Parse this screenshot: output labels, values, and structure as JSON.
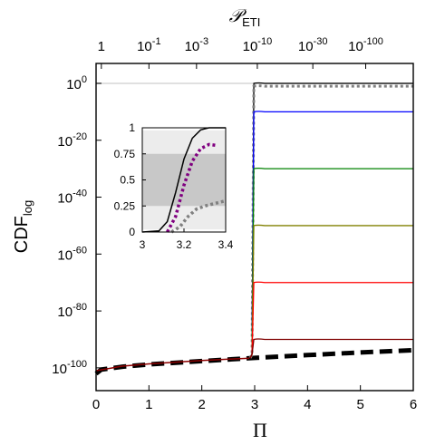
{
  "chart_data": {
    "type": "line",
    "xlabel": "Π",
    "ylabel": "CDF",
    "ylabel_sub": "log",
    "top_xlabel": "𝒫",
    "top_xlabel_sub": "ETI",
    "xlim": [
      0,
      6
    ],
    "ylim_exp": [
      -108,
      7
    ],
    "y_scale": "log",
    "x_ticks": [
      {
        "value": 0,
        "label": "0"
      },
      {
        "value": 1,
        "label": "1"
      },
      {
        "value": 2,
        "label": "2"
      },
      {
        "value": 3,
        "label": "3"
      },
      {
        "value": 4,
        "label": "4"
      },
      {
        "value": 5,
        "label": "5"
      },
      {
        "value": 6,
        "label": "6"
      }
    ],
    "y_ticks": [
      {
        "exp": 0,
        "base": "10",
        "sup": "0"
      },
      {
        "exp": -20,
        "base": "10",
        "sup": "-20"
      },
      {
        "exp": -40,
        "base": "10",
        "sup": "-40"
      },
      {
        "exp": -60,
        "base": "10",
        "sup": "-60"
      },
      {
        "exp": -80,
        "base": "10",
        "sup": "-80"
      },
      {
        "exp": -100,
        "base": "10",
        "sup": "-100"
      }
    ],
    "top_ticks": [
      {
        "x": 0.1,
        "base": "1",
        "sup": ""
      },
      {
        "x": 1.0,
        "base": "10",
        "sup": "-1"
      },
      {
        "x": 1.9,
        "base": "10",
        "sup": "-3"
      },
      {
        "x": 3.05,
        "base": "10",
        "sup": "-10"
      },
      {
        "x": 4.1,
        "base": "10",
        "sup": "-30"
      },
      {
        "x": 5.1,
        "base": "10",
        "sup": "-100"
      }
    ],
    "reference_line_exp": 0,
    "step_x": 2.95,
    "series": [
      {
        "color": "#000000",
        "style": "solid",
        "plateau_exp": 0
      },
      {
        "color": "#808080",
        "style": "dotted",
        "plateau_exp": -1
      },
      {
        "color": "#0000ff",
        "style": "solid",
        "plateau_exp": -10
      },
      {
        "color": "#008000",
        "style": "solid",
        "plateau_exp": -30
      },
      {
        "color": "#808000",
        "style": "solid",
        "plateau_exp": -50
      },
      {
        "color": "#ff0000",
        "style": "solid",
        "plateau_exp": -70
      },
      {
        "color": "#800000",
        "style": "solid",
        "plateau_exp": -90
      }
    ],
    "baseline_curves": [
      {
        "color": "#000000",
        "style": "dashed",
        "points": [
          [
            0,
            -102
          ],
          [
            0.1,
            -100.6
          ],
          [
            0.5,
            -99.6
          ],
          [
            1,
            -98.8
          ],
          [
            2,
            -97.6
          ],
          [
            3,
            -96.5
          ],
          [
            4,
            -95.5
          ],
          [
            5,
            -94.6
          ],
          [
            6,
            -93.8
          ]
        ]
      },
      {
        "color": "#8b0000",
        "style": "solid",
        "points": [
          [
            0,
            -101
          ],
          [
            0.5,
            -99.4
          ],
          [
            1,
            -98.6
          ],
          [
            2,
            -97.4
          ],
          [
            2.9,
            -96.6
          ]
        ]
      }
    ],
    "inset": {
      "xlim": [
        3,
        3.4
      ],
      "ylim": [
        0,
        1
      ],
      "x_ticks": [
        {
          "value": 3,
          "label": "3"
        },
        {
          "value": 3.2,
          "label": "3.2"
        },
        {
          "value": 3.4,
          "label": "3.4"
        }
      ],
      "y_ticks": [
        {
          "value": 0,
          "label": "0"
        },
        {
          "value": 0.25,
          "label": "0.25"
        },
        {
          "value": 0.5,
          "label": "0.5"
        },
        {
          "value": 0.75,
          "label": "0.75"
        },
        {
          "value": 1,
          "label": "1"
        }
      ],
      "bands": [
        {
          "from": 0.025,
          "to": 0.975,
          "color": "#ececec"
        },
        {
          "from": 0.25,
          "to": 0.75,
          "color": "#c8c8c8"
        }
      ],
      "series": [
        {
          "color": "#000000",
          "style": "solid",
          "points": [
            [
              3,
              0
            ],
            [
              3.08,
              0.01
            ],
            [
              3.12,
              0.1
            ],
            [
              3.16,
              0.38
            ],
            [
              3.2,
              0.7
            ],
            [
              3.24,
              0.9
            ],
            [
              3.28,
              0.98
            ],
            [
              3.32,
              1.0
            ],
            [
              3.4,
              1.0
            ]
          ]
        },
        {
          "color": "#800080",
          "style": "dotted",
          "points": [
            [
              3.12,
              0.0
            ],
            [
              3.16,
              0.15
            ],
            [
              3.2,
              0.45
            ],
            [
              3.24,
              0.68
            ],
            [
              3.28,
              0.8
            ],
            [
              3.32,
              0.84
            ],
            [
              3.36,
              0.83
            ]
          ]
        },
        {
          "color": "#808080",
          "style": "dotted",
          "points": [
            [
              3.14,
              0.0
            ],
            [
              3.18,
              0.05
            ],
            [
              3.22,
              0.15
            ],
            [
              3.26,
              0.22
            ],
            [
              3.3,
              0.25
            ],
            [
              3.36,
              0.28
            ],
            [
              3.4,
              0.3
            ]
          ]
        }
      ]
    }
  }
}
